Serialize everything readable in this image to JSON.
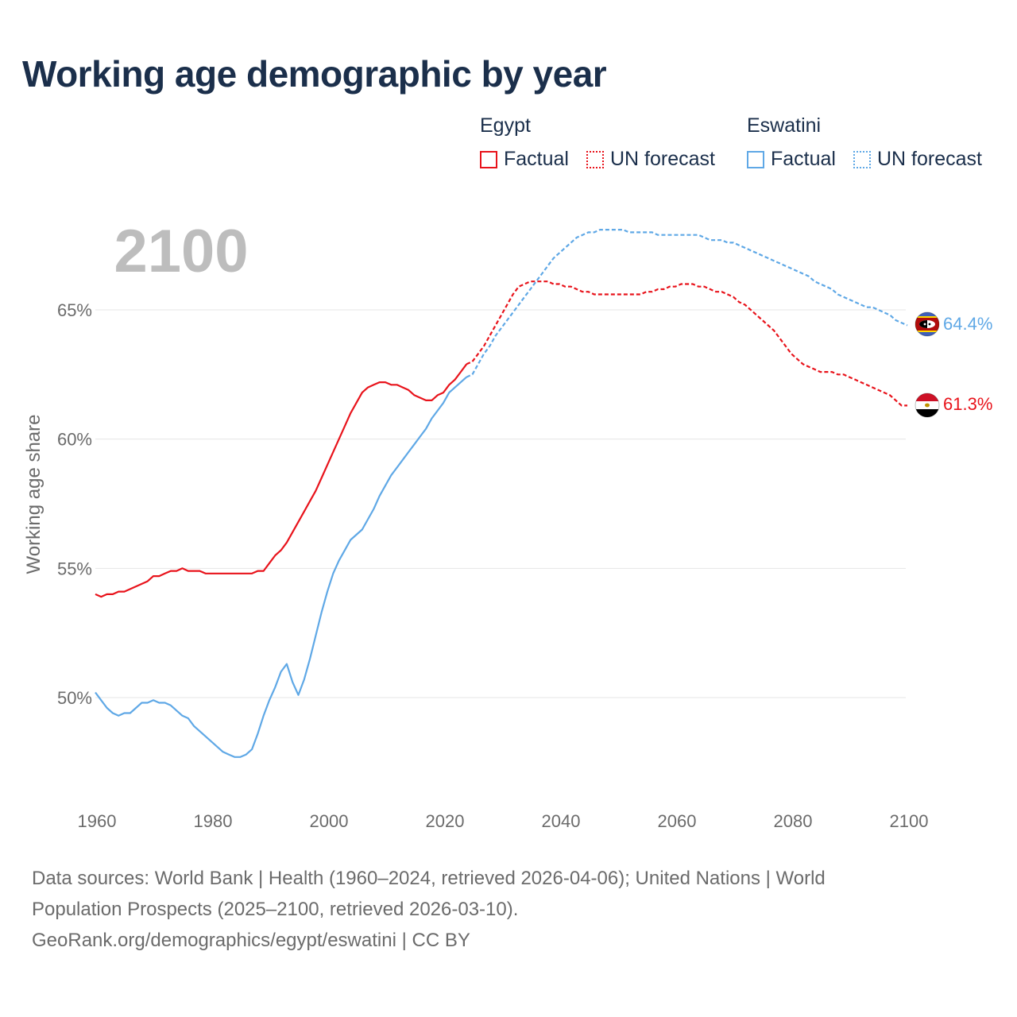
{
  "title": "Working age demographic by year",
  "legend": {
    "groups": [
      {
        "name": "Egypt",
        "color": "#e8131b",
        "factual_label": "Factual",
        "forecast_label": "UN forecast"
      },
      {
        "name": "Eswatini",
        "color": "#5fa8e6",
        "factual_label": "Factual",
        "forecast_label": "UN forecast"
      }
    ]
  },
  "year_display": "2100",
  "footer": {
    "line1": "Data sources: World Bank | Health (1960–2024, retrieved 2026-04-06); United Nations | World",
    "line2": "Population Prospects (2025–2100, retrieved 2026-03-10).",
    "line3": "GeoRank.org/demographics/egypt/eswatini | CC BY"
  },
  "chart_data": {
    "type": "line",
    "title": "Working age demographic by year",
    "xlabel": "",
    "ylabel": "Working age share",
    "xlim": [
      1960,
      2100
    ],
    "ylim": [
      46.5,
      69
    ],
    "x_ticks": [
      1960,
      1980,
      2000,
      2020,
      2040,
      2060,
      2080,
      2100
    ],
    "y_ticks": [
      50,
      55,
      60,
      65
    ],
    "y_tick_labels": [
      "50%",
      "55%",
      "60%",
      "65%"
    ],
    "forecast_start": 2024,
    "series": [
      {
        "name": "Egypt",
        "color": "#e8131b",
        "end_label": "61.3%",
        "points": [
          [
            1960,
            54.0
          ],
          [
            1961,
            53.9
          ],
          [
            1962,
            54.0
          ],
          [
            1963,
            54.0
          ],
          [
            1964,
            54.1
          ],
          [
            1965,
            54.1
          ],
          [
            1966,
            54.2
          ],
          [
            1967,
            54.3
          ],
          [
            1968,
            54.4
          ],
          [
            1969,
            54.5
          ],
          [
            1970,
            54.7
          ],
          [
            1971,
            54.7
          ],
          [
            1972,
            54.8
          ],
          [
            1973,
            54.9
          ],
          [
            1974,
            54.9
          ],
          [
            1975,
            55.0
          ],
          [
            1976,
            54.9
          ],
          [
            1977,
            54.9
          ],
          [
            1978,
            54.9
          ],
          [
            1979,
            54.8
          ],
          [
            1980,
            54.8
          ],
          [
            1981,
            54.8
          ],
          [
            1982,
            54.8
          ],
          [
            1983,
            54.8
          ],
          [
            1984,
            54.8
          ],
          [
            1985,
            54.8
          ],
          [
            1986,
            54.8
          ],
          [
            1987,
            54.8
          ],
          [
            1988,
            54.9
          ],
          [
            1989,
            54.9
          ],
          [
            1990,
            55.2
          ],
          [
            1991,
            55.5
          ],
          [
            1992,
            55.7
          ],
          [
            1993,
            56.0
          ],
          [
            1994,
            56.4
          ],
          [
            1995,
            56.8
          ],
          [
            1996,
            57.2
          ],
          [
            1997,
            57.6
          ],
          [
            1998,
            58.0
          ],
          [
            1999,
            58.5
          ],
          [
            2000,
            59.0
          ],
          [
            2001,
            59.5
          ],
          [
            2002,
            60.0
          ],
          [
            2003,
            60.5
          ],
          [
            2004,
            61.0
          ],
          [
            2005,
            61.4
          ],
          [
            2006,
            61.8
          ],
          [
            2007,
            62.0
          ],
          [
            2008,
            62.1
          ],
          [
            2009,
            62.2
          ],
          [
            2010,
            62.2
          ],
          [
            2011,
            62.1
          ],
          [
            2012,
            62.1
          ],
          [
            2013,
            62.0
          ],
          [
            2014,
            61.9
          ],
          [
            2015,
            61.7
          ],
          [
            2016,
            61.6
          ],
          [
            2017,
            61.5
          ],
          [
            2018,
            61.5
          ],
          [
            2019,
            61.7
          ],
          [
            2020,
            61.8
          ],
          [
            2021,
            62.1
          ],
          [
            2022,
            62.3
          ],
          [
            2023,
            62.6
          ],
          [
            2024,
            62.9
          ],
          [
            2025,
            63.0
          ],
          [
            2026,
            63.3
          ],
          [
            2027,
            63.6
          ],
          [
            2028,
            64.0
          ],
          [
            2029,
            64.4
          ],
          [
            2030,
            64.8
          ],
          [
            2031,
            65.2
          ],
          [
            2032,
            65.6
          ],
          [
            2033,
            65.9
          ],
          [
            2034,
            66.0
          ],
          [
            2035,
            66.1
          ],
          [
            2036,
            66.1
          ],
          [
            2037,
            66.1
          ],
          [
            2038,
            66.1
          ],
          [
            2039,
            66.0
          ],
          [
            2040,
            66.0
          ],
          [
            2041,
            65.9
          ],
          [
            2042,
            65.9
          ],
          [
            2043,
            65.8
          ],
          [
            2044,
            65.7
          ],
          [
            2045,
            65.7
          ],
          [
            2046,
            65.6
          ],
          [
            2047,
            65.6
          ],
          [
            2048,
            65.6
          ],
          [
            2049,
            65.6
          ],
          [
            2050,
            65.6
          ],
          [
            2051,
            65.6
          ],
          [
            2052,
            65.6
          ],
          [
            2053,
            65.6
          ],
          [
            2054,
            65.6
          ],
          [
            2055,
            65.7
          ],
          [
            2056,
            65.7
          ],
          [
            2057,
            65.8
          ],
          [
            2058,
            65.8
          ],
          [
            2059,
            65.9
          ],
          [
            2060,
            65.9
          ],
          [
            2061,
            66.0
          ],
          [
            2062,
            66.0
          ],
          [
            2063,
            66.0
          ],
          [
            2064,
            65.9
          ],
          [
            2065,
            65.9
          ],
          [
            2066,
            65.8
          ],
          [
            2067,
            65.7
          ],
          [
            2068,
            65.7
          ],
          [
            2069,
            65.6
          ],
          [
            2070,
            65.5
          ],
          [
            2071,
            65.3
          ],
          [
            2072,
            65.2
          ],
          [
            2073,
            65.0
          ],
          [
            2074,
            64.8
          ],
          [
            2075,
            64.6
          ],
          [
            2076,
            64.4
          ],
          [
            2077,
            64.2
          ],
          [
            2078,
            63.9
          ],
          [
            2079,
            63.6
          ],
          [
            2080,
            63.3
          ],
          [
            2081,
            63.1
          ],
          [
            2082,
            62.9
          ],
          [
            2083,
            62.8
          ],
          [
            2084,
            62.7
          ],
          [
            2085,
            62.6
          ],
          [
            2086,
            62.6
          ],
          [
            2087,
            62.6
          ],
          [
            2088,
            62.5
          ],
          [
            2089,
            62.5
          ],
          [
            2090,
            62.4
          ],
          [
            2091,
            62.3
          ],
          [
            2092,
            62.2
          ],
          [
            2093,
            62.1
          ],
          [
            2094,
            62.0
          ],
          [
            2095,
            61.9
          ],
          [
            2096,
            61.8
          ],
          [
            2097,
            61.7
          ],
          [
            2098,
            61.5
          ],
          [
            2099,
            61.3
          ],
          [
            2100,
            61.3
          ]
        ]
      },
      {
        "name": "Eswatini",
        "color": "#5fa8e6",
        "end_label": "64.4%",
        "points": [
          [
            1960,
            50.2
          ],
          [
            1961,
            49.9
          ],
          [
            1962,
            49.6
          ],
          [
            1963,
            49.4
          ],
          [
            1964,
            49.3
          ],
          [
            1965,
            49.4
          ],
          [
            1966,
            49.4
          ],
          [
            1967,
            49.6
          ],
          [
            1968,
            49.8
          ],
          [
            1969,
            49.8
          ],
          [
            1970,
            49.9
          ],
          [
            1971,
            49.8
          ],
          [
            1972,
            49.8
          ],
          [
            1973,
            49.7
          ],
          [
            1974,
            49.5
          ],
          [
            1975,
            49.3
          ],
          [
            1976,
            49.2
          ],
          [
            1977,
            48.9
          ],
          [
            1978,
            48.7
          ],
          [
            1979,
            48.5
          ],
          [
            1980,
            48.3
          ],
          [
            1981,
            48.1
          ],
          [
            1982,
            47.9
          ],
          [
            1983,
            47.8
          ],
          [
            1984,
            47.7
          ],
          [
            1985,
            47.7
          ],
          [
            1986,
            47.8
          ],
          [
            1987,
            48.0
          ],
          [
            1988,
            48.6
          ],
          [
            1989,
            49.3
          ],
          [
            1990,
            49.9
          ],
          [
            1991,
            50.4
          ],
          [
            1992,
            51.0
          ],
          [
            1993,
            51.3
          ],
          [
            1994,
            50.6
          ],
          [
            1995,
            50.1
          ],
          [
            1996,
            50.7
          ],
          [
            1997,
            51.5
          ],
          [
            1998,
            52.4
          ],
          [
            1999,
            53.3
          ],
          [
            2000,
            54.1
          ],
          [
            2001,
            54.8
          ],
          [
            2002,
            55.3
          ],
          [
            2003,
            55.7
          ],
          [
            2004,
            56.1
          ],
          [
            2005,
            56.3
          ],
          [
            2006,
            56.5
          ],
          [
            2007,
            56.9
          ],
          [
            2008,
            57.3
          ],
          [
            2009,
            57.8
          ],
          [
            2010,
            58.2
          ],
          [
            2011,
            58.6
          ],
          [
            2012,
            58.9
          ],
          [
            2013,
            59.2
          ],
          [
            2014,
            59.5
          ],
          [
            2015,
            59.8
          ],
          [
            2016,
            60.1
          ],
          [
            2017,
            60.4
          ],
          [
            2018,
            60.8
          ],
          [
            2019,
            61.1
          ],
          [
            2020,
            61.4
          ],
          [
            2021,
            61.8
          ],
          [
            2022,
            62.0
          ],
          [
            2023,
            62.2
          ],
          [
            2024,
            62.4
          ],
          [
            2025,
            62.5
          ],
          [
            2026,
            62.9
          ],
          [
            2027,
            63.3
          ],
          [
            2028,
            63.6
          ],
          [
            2029,
            64.0
          ],
          [
            2030,
            64.3
          ],
          [
            2031,
            64.6
          ],
          [
            2032,
            64.9
          ],
          [
            2033,
            65.2
          ],
          [
            2034,
            65.5
          ],
          [
            2035,
            65.8
          ],
          [
            2036,
            66.1
          ],
          [
            2037,
            66.4
          ],
          [
            2038,
            66.7
          ],
          [
            2039,
            67.0
          ],
          [
            2040,
            67.2
          ],
          [
            2041,
            67.4
          ],
          [
            2042,
            67.6
          ],
          [
            2043,
            67.8
          ],
          [
            2044,
            67.9
          ],
          [
            2045,
            68.0
          ],
          [
            2046,
            68.0
          ],
          [
            2047,
            68.1
          ],
          [
            2048,
            68.1
          ],
          [
            2049,
            68.1
          ],
          [
            2050,
            68.1
          ],
          [
            2051,
            68.1
          ],
          [
            2052,
            68.0
          ],
          [
            2053,
            68.0
          ],
          [
            2054,
            68.0
          ],
          [
            2055,
            68.0
          ],
          [
            2056,
            68.0
          ],
          [
            2057,
            67.9
          ],
          [
            2058,
            67.9
          ],
          [
            2059,
            67.9
          ],
          [
            2060,
            67.9
          ],
          [
            2061,
            67.9
          ],
          [
            2062,
            67.9
          ],
          [
            2063,
            67.9
          ],
          [
            2064,
            67.9
          ],
          [
            2065,
            67.8
          ],
          [
            2066,
            67.7
          ],
          [
            2067,
            67.7
          ],
          [
            2068,
            67.7
          ],
          [
            2069,
            67.6
          ],
          [
            2070,
            67.6
          ],
          [
            2071,
            67.5
          ],
          [
            2072,
            67.4
          ],
          [
            2073,
            67.3
          ],
          [
            2074,
            67.2
          ],
          [
            2075,
            67.1
          ],
          [
            2076,
            67.0
          ],
          [
            2077,
            66.9
          ],
          [
            2078,
            66.8
          ],
          [
            2079,
            66.7
          ],
          [
            2080,
            66.6
          ],
          [
            2081,
            66.5
          ],
          [
            2082,
            66.4
          ],
          [
            2083,
            66.3
          ],
          [
            2084,
            66.1
          ],
          [
            2085,
            66.0
          ],
          [
            2086,
            65.9
          ],
          [
            2087,
            65.8
          ],
          [
            2088,
            65.6
          ],
          [
            2089,
            65.5
          ],
          [
            2090,
            65.4
          ],
          [
            2091,
            65.3
          ],
          [
            2092,
            65.2
          ],
          [
            2093,
            65.1
          ],
          [
            2094,
            65.1
          ],
          [
            2095,
            65.0
          ],
          [
            2096,
            64.9
          ],
          [
            2097,
            64.8
          ],
          [
            2098,
            64.6
          ],
          [
            2099,
            64.5
          ],
          [
            2100,
            64.4
          ]
        ]
      }
    ]
  }
}
